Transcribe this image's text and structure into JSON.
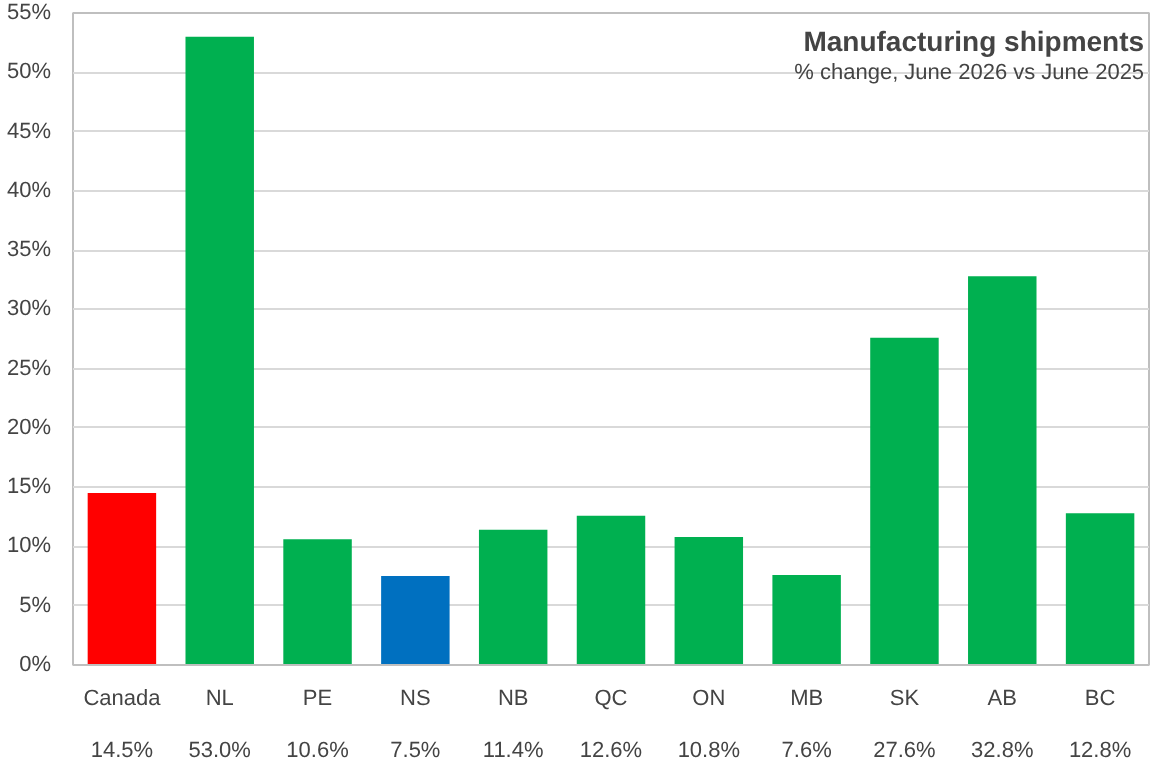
{
  "chart_data": {
    "type": "bar",
    "title": "Manufacturing shipments",
    "subtitle": "% change, June 2026 vs June 2025",
    "categories": [
      "Canada",
      "NL",
      "PE",
      "NS",
      "NB",
      "QC",
      "ON",
      "MB",
      "SK",
      "AB",
      "BC"
    ],
    "values": [
      14.5,
      53.0,
      10.6,
      7.5,
      11.4,
      12.6,
      10.8,
      7.6,
      27.6,
      32.8,
      12.8
    ],
    "value_labels": [
      "14.5%",
      "53.0%",
      "10.6%",
      "7.5%",
      "11.4%",
      "12.6%",
      "10.8%",
      "7.6%",
      "27.6%",
      "32.8%",
      "12.8%"
    ],
    "colors": [
      "#ff0000",
      "#00b050",
      "#00b050",
      "#0070c0",
      "#00b050",
      "#00b050",
      "#00b050",
      "#00b050",
      "#00b050",
      "#00b050",
      "#00b050"
    ],
    "ylim": [
      0,
      55
    ],
    "yticks": [
      {
        "value": 0,
        "label": "0%"
      },
      {
        "value": 5,
        "label": "5%"
      },
      {
        "value": 10,
        "label": "10%"
      },
      {
        "value": 15,
        "label": "15%"
      },
      {
        "value": 20,
        "label": "20%"
      },
      {
        "value": 25,
        "label": "25%"
      },
      {
        "value": 30,
        "label": "30%"
      },
      {
        "value": 35,
        "label": "35%"
      },
      {
        "value": 40,
        "label": "40%"
      },
      {
        "value": 45,
        "label": "45%"
      },
      {
        "value": 50,
        "label": "50%"
      },
      {
        "value": 55,
        "label": "55%"
      }
    ],
    "grid": "y"
  }
}
